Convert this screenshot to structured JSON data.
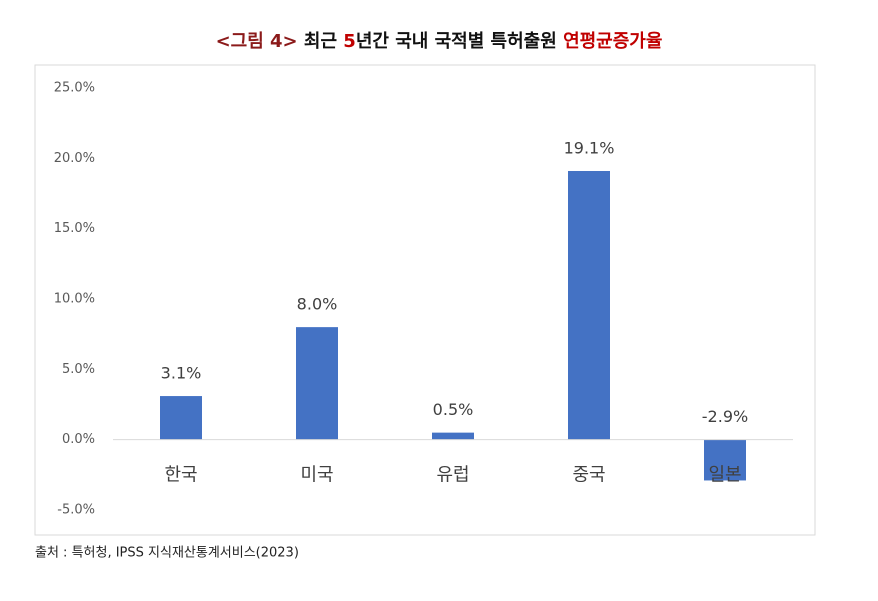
{
  "chart_data": {
    "type": "bar",
    "title_parts": [
      {
        "text": "<그림 4>",
        "color": "#8b1a1a"
      },
      {
        "text": " 최근 ",
        "color": "#111111"
      },
      {
        "text": "5",
        "color": "#c00000"
      },
      {
        "text": "년간 국내 국적별 특허출원 ",
        "color": "#111111"
      },
      {
        "text": "연평균증가율",
        "color": "#c00000"
      }
    ],
    "categories": [
      "한국",
      "미국",
      "유럽",
      "중국",
      "일본"
    ],
    "values": [
      3.1,
      8.0,
      0.5,
      19.1,
      -2.9
    ],
    "value_labels": [
      "3.1%",
      "8.0%",
      "0.5%",
      "19.1%",
      "-2.9%"
    ],
    "color": "#4472c4",
    "ylim": [
      -5,
      25
    ],
    "yticks": [
      {
        "value": -5,
        "label": "-5.0%"
      },
      {
        "value": 0,
        "label": "0.0%"
      },
      {
        "value": 5,
        "label": "5.0%"
      },
      {
        "value": 10,
        "label": "10.0%"
      },
      {
        "value": 15,
        "label": "15.0%"
      },
      {
        "value": 20,
        "label": "20.0%"
      },
      {
        "value": 25,
        "label": "25.0%"
      }
    ],
    "grid": false,
    "source": "출처 : 특허청, IPSS 지식재산통계서비스(2023)"
  }
}
